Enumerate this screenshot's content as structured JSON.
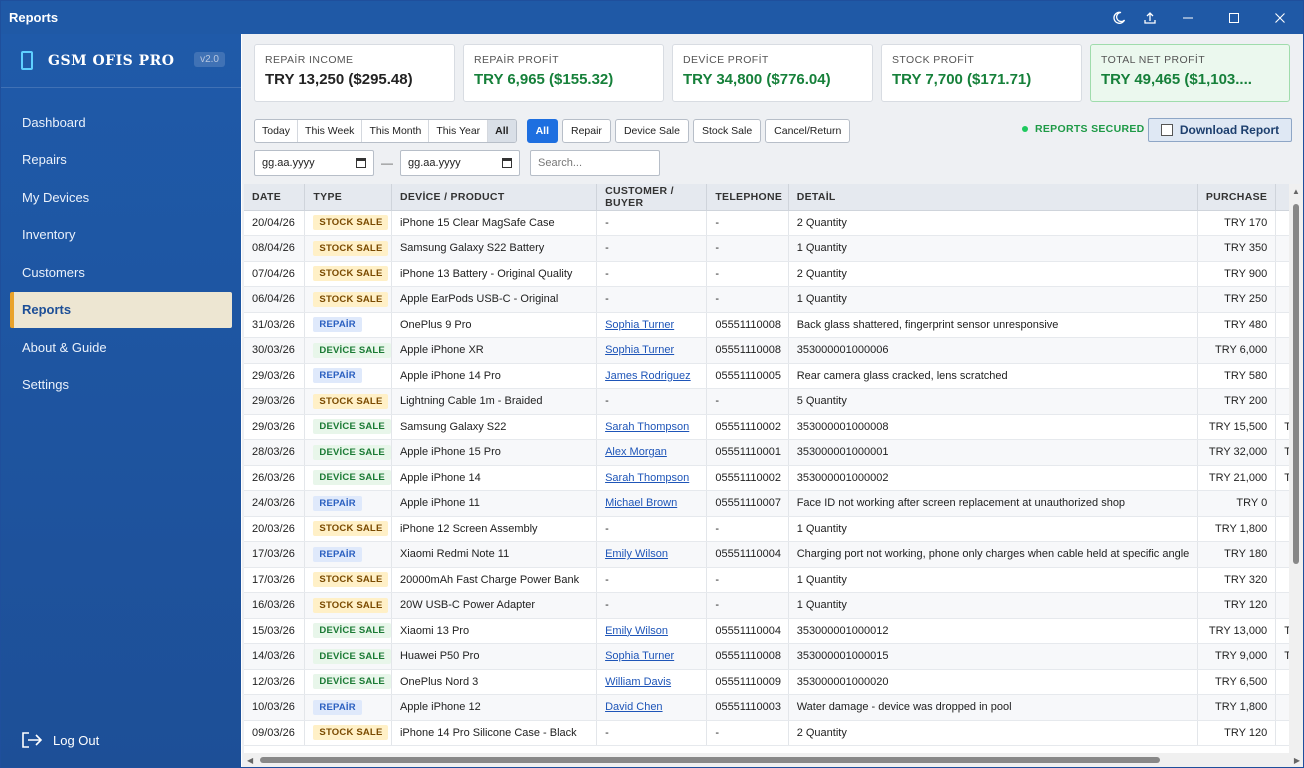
{
  "window": {
    "title": "Reports"
  },
  "sidebar": {
    "app_name": "GSM OFIS PRO",
    "version": "v2.0",
    "items": [
      {
        "label": "Dashboard"
      },
      {
        "label": "Repairs"
      },
      {
        "label": "My Devices"
      },
      {
        "label": "Inventory"
      },
      {
        "label": "Customers"
      },
      {
        "label": "Reports",
        "active": true
      },
      {
        "label": "About & Guide"
      },
      {
        "label": "Settings"
      }
    ],
    "logout": "Log Out"
  },
  "cards": [
    {
      "label": "REPAİR INCOME",
      "value": "TRY 13,250 ($295.48)"
    },
    {
      "label": "REPAİR PROFİT",
      "value": "TRY 6,965 ($155.32)"
    },
    {
      "label": "DEVİCE PROFİT",
      "value": "TRY 34,800 ($776.04)"
    },
    {
      "label": "STOCK PROFİT",
      "value": "TRY 7,700 ($171.71)"
    },
    {
      "label": "TOTAL NET PROFİT",
      "value": "TRY 49,465 ($1,103...."
    }
  ],
  "filters": {
    "periods": [
      "Today",
      "This Week",
      "This Month",
      "This Year",
      "All"
    ],
    "active_period": "All",
    "types": [
      "All",
      "Repair",
      "Device Sale",
      "Stock Sale",
      "Cancel/Return"
    ],
    "active_type": "All",
    "secured": "REPORTS SECURED",
    "download": "Download Report",
    "date_from": "gg.aa.yyyy",
    "date_to": "gg.aa.yyyy",
    "date_sep": "—",
    "search_placeholder": "Search..."
  },
  "table": {
    "columns": [
      "DATE",
      "TYPE",
      "DEVİCE / PRODUCT",
      "CUSTOMER / BUYER",
      "TELEPHONE",
      "DETAİL",
      "PURCHASE",
      ""
    ],
    "rows": [
      {
        "date": "20/04/26",
        "type": "STOCK SALE",
        "kind": "stock",
        "product": "iPhone 15 Clear MagSafe Case",
        "customer": "-",
        "phone": "-",
        "detail": "2 Quantity",
        "purchase": "TRY 170",
        "extra": ""
      },
      {
        "date": "08/04/26",
        "type": "STOCK SALE",
        "kind": "stock",
        "product": "Samsung Galaxy S22 Battery",
        "customer": "-",
        "phone": "-",
        "detail": "1 Quantity",
        "purchase": "TRY 350",
        "extra": ""
      },
      {
        "date": "07/04/26",
        "type": "STOCK SALE",
        "kind": "stock",
        "product": "iPhone 13 Battery - Original Quality",
        "customer": "-",
        "phone": "-",
        "detail": "2 Quantity",
        "purchase": "TRY 900",
        "extra": ""
      },
      {
        "date": "06/04/26",
        "type": "STOCK SALE",
        "kind": "stock",
        "product": "Apple EarPods USB-C - Original",
        "customer": "-",
        "phone": "-",
        "detail": "1 Quantity",
        "purchase": "TRY 250",
        "extra": ""
      },
      {
        "date": "31/03/26",
        "type": "REPAİR",
        "kind": "repair",
        "product": "OnePlus 9 Pro",
        "customer": "Sophia Turner",
        "phone": "05551110008",
        "detail": "Back glass shattered, fingerprint sensor unresponsive",
        "purchase": "TRY 480",
        "extra": ""
      },
      {
        "date": "30/03/26",
        "type": "DEVİCE SALE",
        "kind": "device",
        "product": "Apple iPhone XR",
        "customer": "Sophia Turner",
        "phone": "05551110008",
        "detail": "353000001000006",
        "purchase": "TRY 6,000",
        "extra": ""
      },
      {
        "date": "29/03/26",
        "type": "REPAİR",
        "kind": "repair",
        "product": "Apple iPhone 14 Pro",
        "customer": "James Rodriguez",
        "phone": "05551110005",
        "detail": "Rear camera glass cracked, lens scratched",
        "purchase": "TRY 580",
        "extra": ""
      },
      {
        "date": "29/03/26",
        "type": "STOCK SALE",
        "kind": "stock",
        "product": "Lightning Cable 1m - Braided",
        "customer": "-",
        "phone": "-",
        "detail": "5 Quantity",
        "purchase": "TRY 200",
        "extra": ""
      },
      {
        "date": "29/03/26",
        "type": "DEVİCE SALE",
        "kind": "device",
        "product": "Samsung Galaxy S22",
        "customer": "Sarah Thompson",
        "phone": "05551110002",
        "detail": "353000001000008",
        "purchase": "TRY 15,500",
        "extra": "T"
      },
      {
        "date": "28/03/26",
        "type": "DEVİCE SALE",
        "kind": "device",
        "product": "Apple iPhone 15 Pro",
        "customer": "Alex Morgan",
        "phone": "05551110001",
        "detail": "353000001000001",
        "purchase": "TRY 32,000",
        "extra": "T"
      },
      {
        "date": "26/03/26",
        "type": "DEVİCE SALE",
        "kind": "device",
        "product": "Apple iPhone 14",
        "customer": "Sarah Thompson",
        "phone": "05551110002",
        "detail": "353000001000002",
        "purchase": "TRY 21,000",
        "extra": "T"
      },
      {
        "date": "24/03/26",
        "type": "REPAİR",
        "kind": "repair",
        "product": "Apple iPhone 11",
        "customer": "Michael Brown",
        "phone": "05551110007",
        "detail": "Face ID not working after screen replacement at unauthorized shop",
        "purchase": "TRY 0",
        "extra": ""
      },
      {
        "date": "20/03/26",
        "type": "STOCK SALE",
        "kind": "stock",
        "product": "iPhone 12 Screen Assembly",
        "customer": "-",
        "phone": "-",
        "detail": "1 Quantity",
        "purchase": "TRY 1,800",
        "extra": ""
      },
      {
        "date": "17/03/26",
        "type": "REPAİR",
        "kind": "repair",
        "product": "Xiaomi Redmi Note 11",
        "customer": "Emily Wilson",
        "phone": "05551110004",
        "detail": "Charging port not working, phone only charges when cable held at specific angle",
        "purchase": "TRY 180",
        "extra": ""
      },
      {
        "date": "17/03/26",
        "type": "STOCK SALE",
        "kind": "stock",
        "product": "20000mAh Fast Charge Power Bank",
        "customer": "-",
        "phone": "-",
        "detail": "1 Quantity",
        "purchase": "TRY 320",
        "extra": ""
      },
      {
        "date": "16/03/26",
        "type": "STOCK SALE",
        "kind": "stock",
        "product": "20W USB-C Power Adapter",
        "customer": "-",
        "phone": "-",
        "detail": "1 Quantity",
        "purchase": "TRY 120",
        "extra": ""
      },
      {
        "date": "15/03/26",
        "type": "DEVİCE SALE",
        "kind": "device",
        "product": "Xiaomi 13 Pro",
        "customer": "Emily Wilson",
        "phone": "05551110004",
        "detail": "353000001000012",
        "purchase": "TRY 13,000",
        "extra": "T"
      },
      {
        "date": "14/03/26",
        "type": "DEVİCE SALE",
        "kind": "device",
        "product": "Huawei P50 Pro",
        "customer": "Sophia Turner",
        "phone": "05551110008",
        "detail": "353000001000015",
        "purchase": "TRY 9,000",
        "extra": "T"
      },
      {
        "date": "12/03/26",
        "type": "DEVİCE SALE",
        "kind": "device",
        "product": "OnePlus Nord 3",
        "customer": "William Davis",
        "phone": "05551110009",
        "detail": "353000001000020",
        "purchase": "TRY 6,500",
        "extra": ""
      },
      {
        "date": "10/03/26",
        "type": "REPAİR",
        "kind": "repair",
        "product": "Apple iPhone 12",
        "customer": "David Chen",
        "phone": "05551110003",
        "detail": "Water damage - device was dropped in pool",
        "purchase": "TRY 1,800",
        "extra": ""
      },
      {
        "date": "09/03/26",
        "type": "STOCK SALE",
        "kind": "stock",
        "product": "iPhone 14 Pro Silicone Case - Black",
        "customer": "-",
        "phone": "-",
        "detail": "2 Quantity",
        "purchase": "TRY 120",
        "extra": ""
      }
    ]
  }
}
